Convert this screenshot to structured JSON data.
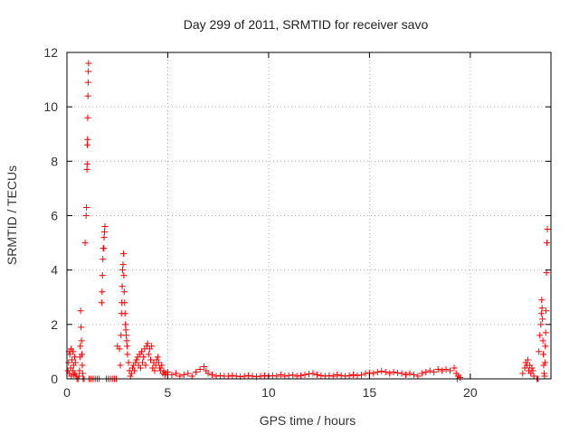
{
  "chart_data": {
    "type": "scatter",
    "title": "Day 299 of 2011, SRMTID for receiver savo",
    "xlabel": "GPS time / hours",
    "ylabel": "SRMTID / TECUs",
    "xlim": [
      0,
      24
    ],
    "ylim": [
      0,
      12
    ],
    "xticks": [
      "0",
      "5",
      "10",
      "15",
      "20"
    ],
    "yticks": [
      "0",
      "2",
      "4",
      "6",
      "8",
      "10",
      "12"
    ],
    "grid": true,
    "marker": "plus",
    "color": "#ff0000",
    "series": [
      {
        "points": [
          [
            0.05,
            0.3
          ],
          [
            0.08,
            0.6
          ],
          [
            0.1,
            1.0
          ],
          [
            0.12,
            0.2
          ],
          [
            0.15,
            0.9
          ],
          [
            0.18,
            0.4
          ],
          [
            0.2,
            1.1
          ],
          [
            0.22,
            0.1
          ],
          [
            0.25,
            0.7
          ],
          [
            0.28,
            0.3
          ],
          [
            0.3,
            1.0
          ],
          [
            0.33,
            0.5
          ],
          [
            0.35,
            0.15
          ],
          [
            0.38,
            0.8
          ],
          [
            0.4,
            0.2
          ],
          [
            0.42,
            0.6
          ],
          [
            0.45,
            0.1
          ],
          [
            0.5,
            0.0
          ],
          [
            0.55,
            0.0
          ],
          [
            0.6,
            0.1
          ],
          [
            0.62,
            0.3
          ],
          [
            0.64,
            0.8
          ],
          [
            0.66,
            1.2
          ],
          [
            0.68,
            2.5
          ],
          [
            0.7,
            1.9
          ],
          [
            0.72,
            1.4
          ],
          [
            0.74,
            0.9
          ],
          [
            0.76,
            0.5
          ],
          [
            0.78,
            0.2
          ],
          [
            0.8,
            0.0
          ],
          [
            0.85,
            0.0
          ],
          [
            0.9,
            5.0
          ],
          [
            0.95,
            6.0
          ],
          [
            0.97,
            6.3
          ],
          [
            0.99,
            7.7
          ],
          [
            1.0,
            7.9
          ],
          [
            1.01,
            8.6
          ],
          [
            1.02,
            8.8
          ],
          [
            1.03,
            9.6
          ],
          [
            1.04,
            10.4
          ],
          [
            1.05,
            10.9
          ],
          [
            1.06,
            11.3
          ],
          [
            1.07,
            11.6
          ],
          [
            1.1,
            0.0
          ],
          [
            1.2,
            0.0
          ],
          [
            1.3,
            0.0
          ],
          [
            1.4,
            0.0
          ],
          [
            1.5,
            0.0
          ],
          [
            1.6,
            0.0
          ],
          [
            1.72,
            2.8
          ],
          [
            1.74,
            3.2
          ],
          [
            1.76,
            3.8
          ],
          [
            1.78,
            4.4
          ],
          [
            1.8,
            4.8
          ],
          [
            1.82,
            4.8
          ],
          [
            1.84,
            5.2
          ],
          [
            1.86,
            5.4
          ],
          [
            1.88,
            5.6
          ],
          [
            1.95,
            0.0
          ],
          [
            2.05,
            0.0
          ],
          [
            2.15,
            0.0
          ],
          [
            2.25,
            0.0
          ],
          [
            2.35,
            0.0
          ],
          [
            2.45,
            0.0
          ],
          [
            2.5,
            1.2
          ],
          [
            2.6,
            1.1
          ],
          [
            2.65,
            0.5
          ],
          [
            2.68,
            1.6
          ],
          [
            2.7,
            2.4
          ],
          [
            2.72,
            2.8
          ],
          [
            2.74,
            3.4
          ],
          [
            2.76,
            4.0
          ],
          [
            2.78,
            4.2
          ],
          [
            2.8,
            4.6
          ],
          [
            2.82,
            3.8
          ],
          [
            2.84,
            3.2
          ],
          [
            2.86,
            2.8
          ],
          [
            2.88,
            2.4
          ],
          [
            2.9,
            2.0
          ],
          [
            2.92,
            1.8
          ],
          [
            2.94,
            1.6
          ],
          [
            2.96,
            1.4
          ],
          [
            2.98,
            1.2
          ],
          [
            3.0,
            0.9
          ],
          [
            3.05,
            0.6
          ],
          [
            3.1,
            0.3
          ],
          [
            3.15,
            0.1
          ],
          [
            3.2,
            0.2
          ],
          [
            3.25,
            0.4
          ],
          [
            3.3,
            0.5
          ],
          [
            3.35,
            0.3
          ],
          [
            3.4,
            0.6
          ],
          [
            3.45,
            0.7
          ],
          [
            3.5,
            0.8
          ],
          [
            3.55,
            0.5
          ],
          [
            3.6,
            0.9
          ],
          [
            3.65,
            0.4
          ],
          [
            3.7,
            1.0
          ],
          [
            3.75,
            0.6
          ],
          [
            3.8,
            0.8
          ],
          [
            3.85,
            1.1
          ],
          [
            3.9,
            0.5
          ],
          [
            3.95,
            1.2
          ],
          [
            4.0,
            1.3
          ],
          [
            4.05,
            0.9
          ],
          [
            4.1,
            1.1
          ],
          [
            4.15,
            0.7
          ],
          [
            4.2,
            1.2
          ],
          [
            4.25,
            0.4
          ],
          [
            4.3,
            0.6
          ],
          [
            4.35,
            0.3
          ],
          [
            4.4,
            0.5
          ],
          [
            4.45,
            0.7
          ],
          [
            4.5,
            0.8
          ],
          [
            4.55,
            0.6
          ],
          [
            4.6,
            0.4
          ],
          [
            4.65,
            0.3
          ],
          [
            4.7,
            0.5
          ],
          [
            4.75,
            0.2
          ],
          [
            4.8,
            0.3
          ],
          [
            4.85,
            0.15
          ],
          [
            4.9,
            0.2
          ],
          [
            5.0,
            0.25
          ],
          [
            5.2,
            0.15
          ],
          [
            5.4,
            0.2
          ],
          [
            5.6,
            0.1
          ],
          [
            5.8,
            0.15
          ],
          [
            6.0,
            0.2
          ],
          [
            6.2,
            0.1
          ],
          [
            6.4,
            0.25
          ],
          [
            6.6,
            0.35
          ],
          [
            6.8,
            0.45
          ],
          [
            6.9,
            0.3
          ],
          [
            7.0,
            0.2
          ],
          [
            7.2,
            0.15
          ],
          [
            7.4,
            0.1
          ],
          [
            7.6,
            0.12
          ],
          [
            7.8,
            0.1
          ],
          [
            8.0,
            0.1
          ],
          [
            8.2,
            0.12
          ],
          [
            8.4,
            0.1
          ],
          [
            8.6,
            0.08
          ],
          [
            8.8,
            0.1
          ],
          [
            9.0,
            0.12
          ],
          [
            9.2,
            0.1
          ],
          [
            9.4,
            0.08
          ],
          [
            9.6,
            0.1
          ],
          [
            9.8,
            0.12
          ],
          [
            10.0,
            0.1
          ],
          [
            10.2,
            0.12
          ],
          [
            10.4,
            0.1
          ],
          [
            10.6,
            0.15
          ],
          [
            10.8,
            0.1
          ],
          [
            11.0,
            0.12
          ],
          [
            11.2,
            0.14
          ],
          [
            11.4,
            0.1
          ],
          [
            11.6,
            0.12
          ],
          [
            11.8,
            0.15
          ],
          [
            12.0,
            0.18
          ],
          [
            12.2,
            0.2
          ],
          [
            12.4,
            0.15
          ],
          [
            12.6,
            0.12
          ],
          [
            12.8,
            0.1
          ],
          [
            13.0,
            0.12
          ],
          [
            13.2,
            0.1
          ],
          [
            13.4,
            0.15
          ],
          [
            13.6,
            0.12
          ],
          [
            13.8,
            0.1
          ],
          [
            14.0,
            0.12
          ],
          [
            14.2,
            0.15
          ],
          [
            14.4,
            0.12
          ],
          [
            14.6,
            0.14
          ],
          [
            14.8,
            0.2
          ],
          [
            15.0,
            0.22
          ],
          [
            15.2,
            0.2
          ],
          [
            15.4,
            0.25
          ],
          [
            15.6,
            0.28
          ],
          [
            15.8,
            0.25
          ],
          [
            16.0,
            0.2
          ],
          [
            16.2,
            0.25
          ],
          [
            16.4,
            0.22
          ],
          [
            16.6,
            0.2
          ],
          [
            16.8,
            0.15
          ],
          [
            17.0,
            0.2
          ],
          [
            17.2,
            0.15
          ],
          [
            17.4,
            0.1
          ],
          [
            17.6,
            0.2
          ],
          [
            17.8,
            0.25
          ],
          [
            18.0,
            0.3
          ],
          [
            18.2,
            0.25
          ],
          [
            18.4,
            0.35
          ],
          [
            18.6,
            0.3
          ],
          [
            18.8,
            0.35
          ],
          [
            19.0,
            0.3
          ],
          [
            19.2,
            0.4
          ],
          [
            19.3,
            0.2
          ],
          [
            19.35,
            0.0
          ],
          [
            19.4,
            0.1
          ],
          [
            19.5,
            0.05
          ],
          [
            22.6,
            0.2
          ],
          [
            22.7,
            0.4
          ],
          [
            22.75,
            0.6
          ],
          [
            22.8,
            0.5
          ],
          [
            22.85,
            0.7
          ],
          [
            22.9,
            0.3
          ],
          [
            22.95,
            0.5
          ],
          [
            23.0,
            0.2
          ],
          [
            23.05,
            0.4
          ],
          [
            23.1,
            0.3
          ],
          [
            23.15,
            0.1
          ],
          [
            23.3,
            0.0
          ],
          [
            23.35,
            0.0
          ],
          [
            23.4,
            1.0
          ],
          [
            23.45,
            1.6
          ],
          [
            23.5,
            2.0
          ],
          [
            23.52,
            2.4
          ],
          [
            23.54,
            2.9
          ],
          [
            23.56,
            2.6
          ],
          [
            23.58,
            2.2
          ],
          [
            23.6,
            1.4
          ],
          [
            23.62,
            0.9
          ],
          [
            23.64,
            0.5
          ],
          [
            23.66,
            0.2
          ],
          [
            23.68,
            0.1
          ],
          [
            23.7,
            0.6
          ],
          [
            23.72,
            1.2
          ],
          [
            23.74,
            1.7
          ],
          [
            23.76,
            2.5
          ],
          [
            23.78,
            3.9
          ],
          [
            23.8,
            5.0
          ],
          [
            23.82,
            5.5
          ]
        ]
      }
    ]
  }
}
